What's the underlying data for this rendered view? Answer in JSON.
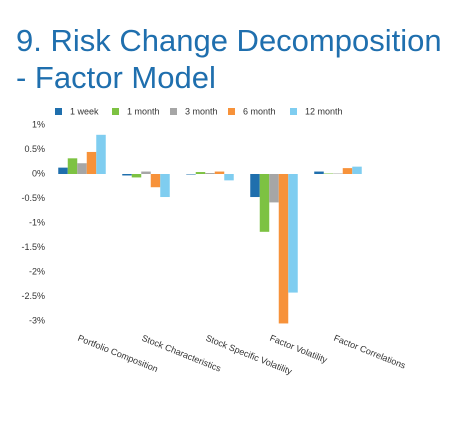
{
  "chart_data": {
    "type": "bar",
    "title": "9. Risk Change Decomposition - Factor Model",
    "categories": [
      "Portfolio Composition",
      "Stock Characteristics",
      "Stock Specific Volatility",
      "Factor Volatility",
      "Factor Correlations"
    ],
    "series": [
      {
        "name": "1 week",
        "color": "#1f6fad",
        "values": [
          0.13,
          -0.03,
          -0.01,
          -0.47,
          0.05
        ]
      },
      {
        "name": "1 month",
        "color": "#7dc242",
        "values": [
          0.32,
          -0.07,
          0.04,
          -1.18,
          0.01
        ]
      },
      {
        "name": "3 month",
        "color": "#a6a6a6",
        "values": [
          0.22,
          0.05,
          0.02,
          -0.58,
          0.01
        ]
      },
      {
        "name": "6 month",
        "color": "#f7923a",
        "values": [
          0.45,
          -0.27,
          0.05,
          -3.05,
          0.12
        ]
      },
      {
        "name": "12 month",
        "color": "#7fcdf0",
        "values": [
          0.8,
          -0.47,
          -0.13,
          -2.42,
          0.15
        ]
      }
    ],
    "ylim": [
      -3,
      1
    ],
    "yticks": [
      {
        "value": 1,
        "label": "1%"
      },
      {
        "value": 0.5,
        "label": "0.5%"
      },
      {
        "value": 0,
        "label": "0%"
      },
      {
        "value": -0.5,
        "label": "-0.5%"
      },
      {
        "value": -1,
        "label": "-1%"
      },
      {
        "value": -1.5,
        "label": "-1.5%"
      },
      {
        "value": -2,
        "label": "-2%"
      },
      {
        "value": -2.5,
        "label": "-2.5%"
      },
      {
        "value": -3,
        "label": "-3%"
      }
    ],
    "grid": false,
    "legend": "top"
  }
}
